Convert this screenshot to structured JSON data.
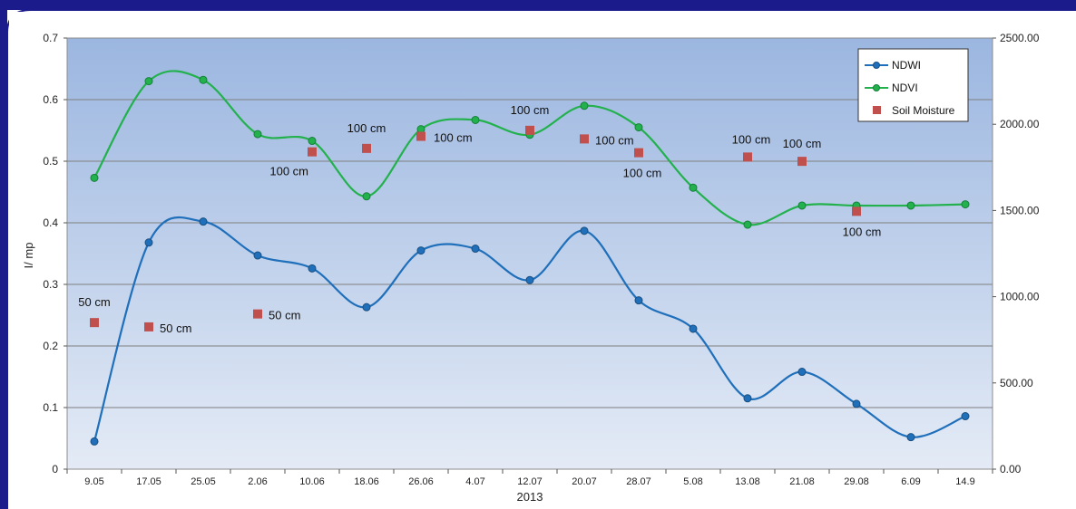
{
  "chart_data": {
    "type": "line",
    "title": "",
    "xlabel": "2013",
    "ylabel": "I/ mp",
    "categories": [
      "9.05",
      "17.05",
      "25.05",
      "2.06",
      "10.06",
      "18.06",
      "26.06",
      "4.07",
      "12.07",
      "20.07",
      "28.07",
      "5.08",
      "13.08",
      "21.08",
      "29.08",
      "6.09",
      "14.9"
    ],
    "ylim": [
      0,
      0.7
    ],
    "y_ticks": [
      "0",
      "0.1",
      "0.2",
      "0.3",
      "0.4",
      "0.5",
      "0.6",
      "0.7"
    ],
    "y2lim": [
      0,
      2500
    ],
    "y2_ticks": [
      "0.00",
      "500.00",
      "1000.00",
      "1500.00",
      "2000.00",
      "2500.00"
    ],
    "grid": true,
    "legend_position": "top-right",
    "series": [
      {
        "name": "NDWI",
        "color": "#1f6fba",
        "axis": "left",
        "values": [
          0.045,
          0.368,
          0.402,
          0.347,
          0.326,
          0.263,
          0.355,
          0.358,
          0.307,
          0.387,
          0.274,
          0.228,
          0.115,
          0.158,
          0.106,
          0.052,
          0.086
        ]
      },
      {
        "name": "NDVI",
        "color": "#22b14c",
        "axis": "left",
        "values": [
          0.473,
          0.63,
          0.632,
          0.544,
          0.533,
          0.443,
          0.552,
          0.567,
          0.543,
          0.59,
          0.555,
          0.457,
          0.397,
          0.428,
          0.428,
          0.428,
          0.43
        ]
      }
    ],
    "scatter": {
      "name": "Soil Moisture",
      "color": "#c0504d",
      "axis": "right",
      "points": [
        {
          "x": "9.05",
          "y": 850,
          "label": "50 cm"
        },
        {
          "x": "17.05",
          "y": 825,
          "label": "50 cm"
        },
        {
          "x": "2.06",
          "y": 900,
          "label": "50 cm"
        },
        {
          "x": "10.06",
          "y": 1840,
          "label": "100 cm"
        },
        {
          "x": "18.06",
          "y": 1860,
          "label": "100 cm"
        },
        {
          "x": "26.06",
          "y": 1930,
          "label": "100 cm"
        },
        {
          "x": "12.07",
          "y": 1965,
          "label": "100 cm"
        },
        {
          "x": "20.07",
          "y": 1915,
          "label": "100 cm"
        },
        {
          "x": "28.07",
          "y": 1835,
          "label": "100 cm"
        },
        {
          "x": "13.08",
          "y": 1810,
          "label": "100 cm"
        },
        {
          "x": "21.08",
          "y": 1785,
          "label": "100 cm"
        },
        {
          "x": "29.08",
          "y": 1495,
          "label": "100 cm"
        }
      ]
    }
  },
  "colors": {
    "frame": "#1b1b8c",
    "plot_top": "#9bb6e0",
    "plot_bottom": "#e4ebf6",
    "grid": "#7f7f7f"
  }
}
